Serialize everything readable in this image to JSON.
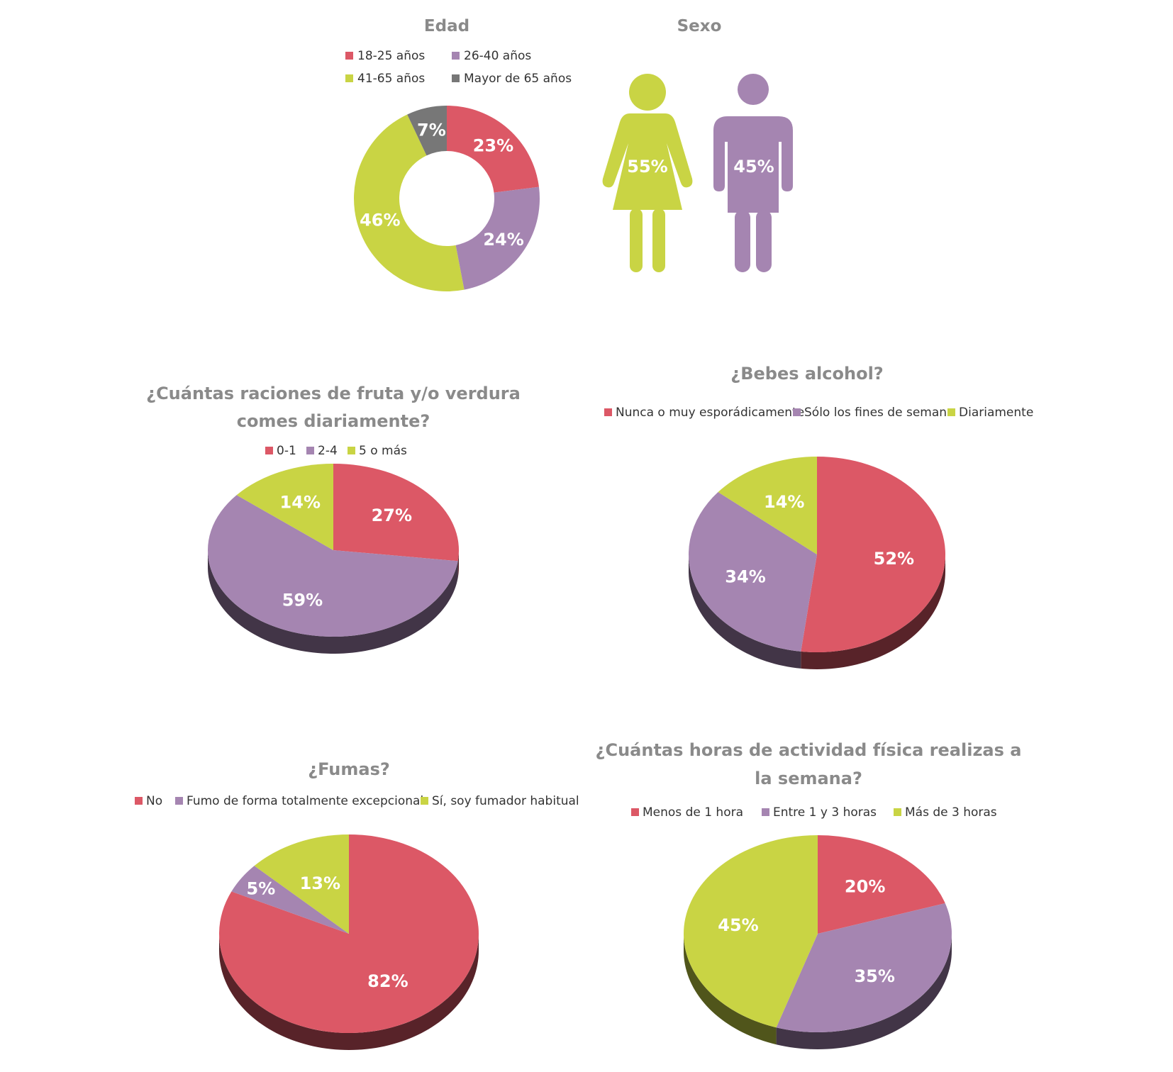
{
  "colors": {
    "red": "#dc5866",
    "purple": "#a585b1",
    "green": "#c9d444",
    "gray": "#777777",
    "title": "#8a8a8a"
  },
  "chart_data": [
    {
      "id": "edad",
      "type": "pie",
      "donut": true,
      "title": "Edad",
      "categories": [
        "18-25 años",
        "26-40 años",
        "41-65 años",
        "Mayor de 65 años"
      ],
      "values": [
        23,
        24,
        46,
        7
      ],
      "labels": [
        "23%",
        "24%",
        "46%",
        "7%"
      ],
      "colors": [
        "#dc5866",
        "#a585b1",
        "#c9d444",
        "#777777"
      ],
      "legend": "top"
    },
    {
      "id": "sexo",
      "type": "pictogram",
      "title": "Sexo",
      "categories": [
        "Mujer",
        "Hombre"
      ],
      "values": [
        55,
        45
      ],
      "labels": [
        "55%",
        "45%"
      ],
      "colors": [
        "#c9d444",
        "#a585b1"
      ]
    },
    {
      "id": "fruta",
      "type": "pie",
      "three_d": true,
      "title": [
        "¿Cuántas raciones de fruta y/o verdura",
        "comes diariamente?"
      ],
      "categories": [
        "0-1",
        "2-4",
        "5 o más"
      ],
      "values": [
        27,
        59,
        14
      ],
      "labels": [
        "27%",
        "59%",
        "14%"
      ],
      "colors": [
        "#dc5866",
        "#a585b1",
        "#c9d444"
      ],
      "legend": "top"
    },
    {
      "id": "alcohol",
      "type": "pie",
      "three_d": true,
      "title": [
        "¿Bebes alcohol?"
      ],
      "categories": [
        "Nunca o muy esporádicamente",
        "Sólo los fines de semana",
        "Diariamente"
      ],
      "values": [
        52,
        34,
        14
      ],
      "labels": [
        "52%",
        "34%",
        "14%"
      ],
      "colors": [
        "#dc5866",
        "#a585b1",
        "#c9d444"
      ],
      "legend": "top"
    },
    {
      "id": "fumas",
      "type": "pie",
      "three_d": true,
      "title": [
        "¿Fumas?"
      ],
      "categories": [
        "No",
        "Fumo de forma totalmente excepcional",
        "Sí, soy fumador habitual"
      ],
      "values": [
        82,
        5,
        13
      ],
      "labels": [
        "82%",
        "5%",
        "13%"
      ],
      "colors": [
        "#dc5866",
        "#a585b1",
        "#c9d444"
      ],
      "legend": "top"
    },
    {
      "id": "actividad",
      "type": "pie",
      "three_d": true,
      "title": [
        "¿Cuántas horas de actividad física realizas a",
        "la semana?"
      ],
      "categories": [
        "Menos de 1 hora",
        "Entre 1 y 3 horas",
        "Más de 3 horas"
      ],
      "values": [
        20,
        35,
        45
      ],
      "labels": [
        "20%",
        "35%",
        "45%"
      ],
      "colors": [
        "#dc5866",
        "#a585b1",
        "#c9d444"
      ],
      "legend": "top"
    }
  ]
}
